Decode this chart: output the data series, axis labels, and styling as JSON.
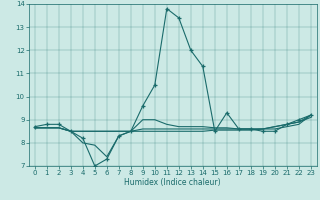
{
  "xlabel": "Humidex (Indice chaleur)",
  "xlim": [
    -0.5,
    23.5
  ],
  "ylim": [
    7,
    14
  ],
  "xticks": [
    0,
    1,
    2,
    3,
    4,
    5,
    6,
    7,
    8,
    9,
    10,
    11,
    12,
    13,
    14,
    15,
    16,
    17,
    18,
    19,
    20,
    21,
    22,
    23
  ],
  "yticks": [
    7,
    8,
    9,
    10,
    11,
    12,
    13,
    14
  ],
  "bg_color": "#cce9e5",
  "line_color": "#1a6b6b",
  "series": [
    {
      "x": [
        0,
        1,
        2,
        3,
        4,
        5,
        6,
        7,
        8,
        9,
        10,
        11,
        12,
        13,
        14,
        15,
        16,
        17,
        18,
        19,
        20,
        21,
        22,
        23
      ],
      "y": [
        8.7,
        8.8,
        8.8,
        8.5,
        8.2,
        7.0,
        7.3,
        8.3,
        8.5,
        9.6,
        10.5,
        13.8,
        13.4,
        12.0,
        11.3,
        8.5,
        9.3,
        8.6,
        8.6,
        8.5,
        8.5,
        8.8,
        9.0,
        9.2
      ],
      "marker": "+"
    },
    {
      "x": [
        0,
        1,
        2,
        3,
        4,
        5,
        6,
        7,
        8,
        9,
        10,
        11,
        12,
        13,
        14,
        15,
        16,
        17,
        18,
        19,
        20,
        21,
        22,
        23
      ],
      "y": [
        8.65,
        8.65,
        8.65,
        8.5,
        8.5,
        8.5,
        8.5,
        8.5,
        8.5,
        8.6,
        8.6,
        8.6,
        8.6,
        8.6,
        8.6,
        8.6,
        8.6,
        8.6,
        8.6,
        8.6,
        8.7,
        8.8,
        8.9,
        9.2
      ],
      "marker": null
    },
    {
      "x": [
        0,
        1,
        2,
        3,
        4,
        5,
        6,
        7,
        8,
        9,
        10,
        11,
        12,
        13,
        14,
        15,
        16,
        17,
        18,
        19,
        20,
        21,
        22,
        23
      ],
      "y": [
        8.65,
        8.65,
        8.65,
        8.5,
        8.0,
        7.9,
        7.4,
        8.3,
        8.5,
        9.0,
        9.0,
        8.8,
        8.7,
        8.7,
        8.7,
        8.65,
        8.65,
        8.6,
        8.6,
        8.6,
        8.6,
        8.7,
        8.8,
        9.2
      ],
      "marker": null
    },
    {
      "x": [
        0,
        1,
        2,
        3,
        4,
        5,
        6,
        7,
        8,
        9,
        10,
        11,
        12,
        13,
        14,
        15,
        16,
        17,
        18,
        19,
        20,
        21,
        22,
        23
      ],
      "y": [
        8.65,
        8.65,
        8.65,
        8.5,
        8.5,
        8.5,
        8.5,
        8.5,
        8.5,
        8.5,
        8.5,
        8.5,
        8.5,
        8.5,
        8.5,
        8.55,
        8.55,
        8.55,
        8.55,
        8.6,
        8.7,
        8.8,
        8.9,
        9.1
      ],
      "marker": null
    }
  ]
}
